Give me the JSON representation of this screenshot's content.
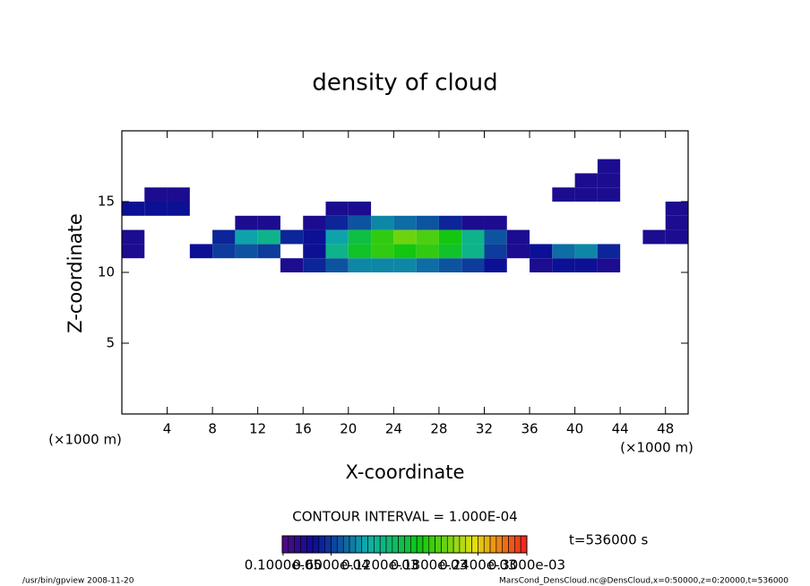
{
  "chart_data": {
    "type": "heatmap",
    "title": "density of cloud",
    "x_label": "X-coordinate",
    "y_label": "Z-coordinate",
    "x_unit_left": "(×1000 m)",
    "x_unit_right": "(×1000 m)",
    "contour_interval": "CONTOUR INTERVAL = 1.000E-04",
    "time_label": "t=536000 s",
    "footer_left": "/usr/bin/gpview  2008-11-20",
    "footer_right": "MarsCond_DensCloud.nc@DensCloud,x=0:50000,z=0:20000,t=536000",
    "xlim": [
      0,
      50
    ],
    "ylim": [
      0,
      20
    ],
    "xticks": [
      4,
      8,
      12,
      16,
      20,
      24,
      28,
      32,
      36,
      40,
      44,
      48
    ],
    "yticks": [
      5,
      10,
      15
    ],
    "x": [
      1,
      3,
      5,
      7,
      9,
      11,
      13,
      15,
      17,
      19,
      21,
      23,
      25,
      27,
      29,
      31,
      33,
      35,
      37,
      39,
      41,
      43,
      45,
      47,
      49
    ],
    "z": [
      10.5,
      11.5,
      12.5,
      13.5,
      14.5,
      15.5,
      16.5,
      17.5
    ],
    "values": [
      [
        null,
        null,
        null,
        null,
        null,
        null,
        null,
        3e-05,
        5e-05,
        7e-05,
        9e-05,
        9e-05,
        9e-05,
        8e-05,
        7e-05,
        6e-05,
        4e-05,
        null,
        3e-05,
        4e-05,
        4e-05,
        3e-05,
        null,
        null,
        null
      ],
      [
        3e-05,
        null,
        null,
        4e-05,
        6e-05,
        7e-05,
        6e-05,
        null,
        4e-05,
        0.00012,
        0.00016,
        0.00018,
        0.00017,
        0.00018,
        0.00016,
        0.00012,
        6e-05,
        3e-05,
        4e-05,
        8e-05,
        9e-05,
        5e-05,
        null,
        null,
        null
      ],
      [
        3e-05,
        null,
        null,
        null,
        5e-05,
        0.0001,
        0.00012,
        5e-05,
        4e-05,
        0.0001,
        0.00015,
        0.00018,
        0.0002,
        0.00019,
        0.00017,
        0.00012,
        7e-05,
        3e-05,
        null,
        null,
        null,
        null,
        null,
        3e-05,
        3e-05
      ],
      [
        null,
        null,
        null,
        null,
        null,
        3e-05,
        3e-05,
        null,
        3e-05,
        5e-05,
        7e-05,
        9e-05,
        8e-05,
        7e-05,
        5e-05,
        3e-05,
        3e-05,
        null,
        null,
        null,
        null,
        null,
        null,
        null,
        3e-05
      ],
      [
        4e-05,
        4e-05,
        4e-05,
        null,
        null,
        null,
        null,
        null,
        null,
        3e-05,
        3e-05,
        null,
        null,
        null,
        null,
        null,
        null,
        null,
        null,
        null,
        null,
        null,
        null,
        null,
        3e-05
      ],
      [
        null,
        3e-05,
        3e-05,
        null,
        null,
        null,
        null,
        null,
        null,
        null,
        null,
        null,
        null,
        null,
        null,
        null,
        null,
        null,
        null,
        3e-05,
        3e-05,
        3e-05,
        null,
        null,
        null
      ],
      [
        null,
        null,
        null,
        null,
        null,
        null,
        null,
        null,
        null,
        null,
        null,
        null,
        null,
        null,
        null,
        null,
        null,
        null,
        null,
        null,
        3e-05,
        3e-05,
        null,
        null,
        null
      ],
      [
        null,
        null,
        null,
        null,
        null,
        null,
        null,
        null,
        null,
        null,
        null,
        null,
        null,
        null,
        null,
        null,
        null,
        null,
        null,
        null,
        null,
        3e-05,
        null,
        null,
        null
      ]
    ],
    "zlim": [
      0,
      0.0003
    ],
    "colorbar_ticks": [
      {
        "value": 1e-06,
        "label": "0.1000e-05"
      },
      {
        "value": 6e-05,
        "label": "0.6000e-04"
      },
      {
        "value": 0.00012,
        "label": "0.1200e-03"
      },
      {
        "value": 0.00018,
        "label": "0.1800e-03"
      },
      {
        "value": 0.00024,
        "label": "0.2400e-03"
      },
      {
        "value": 0.0003,
        "label": "0.3000e-03"
      }
    ]
  }
}
